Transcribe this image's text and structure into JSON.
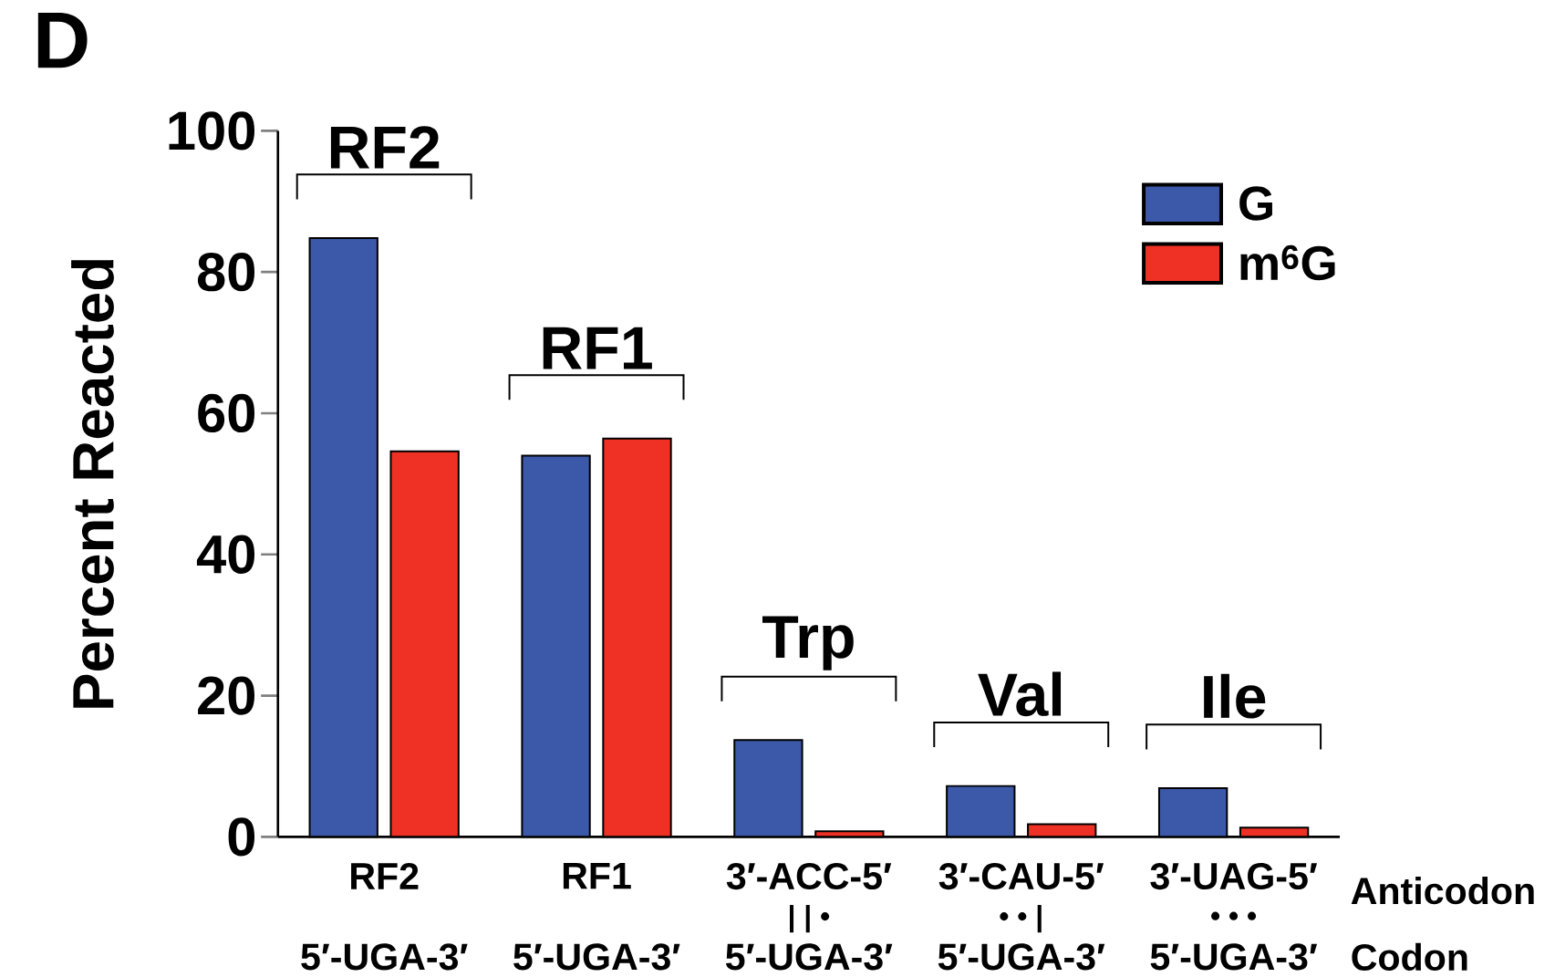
{
  "chart_data": {
    "type": "bar",
    "title": "D",
    "ylabel": "Percent Reacted",
    "categories": [
      "RF2",
      "RF1",
      "3′-ACC-5′",
      "3′-CAU-5′",
      "3′-UAG-5′"
    ],
    "series": [
      {
        "name": "G",
        "color": "#3c58a8",
        "values": [
          84.8,
          54.0,
          13.7,
          7.2,
          6.9
        ]
      },
      {
        "name": "m$^{6}$G",
        "color": "#ee3124",
        "values": [
          54.6,
          56.4,
          0.8,
          1.8,
          1.3
        ]
      }
    ],
    "ylim": [
      0,
      100
    ],
    "yticks": [
      0,
      20,
      40,
      60,
      80,
      100
    ],
    "grid": false,
    "legend": "top right",
    "annotations": [
      "RF2",
      "RF1",
      "Trp",
      "Val",
      "Ile",
      "Anticodon",
      "Codon",
      "5′-UGA-3′",
      "5′-UGA-3′",
      "5′-UGA-3′",
      "5′-UGA-3′",
      "5′-UGA-3′",
      "| | •",
      "• • |",
      "• • •"
    ]
  }
}
